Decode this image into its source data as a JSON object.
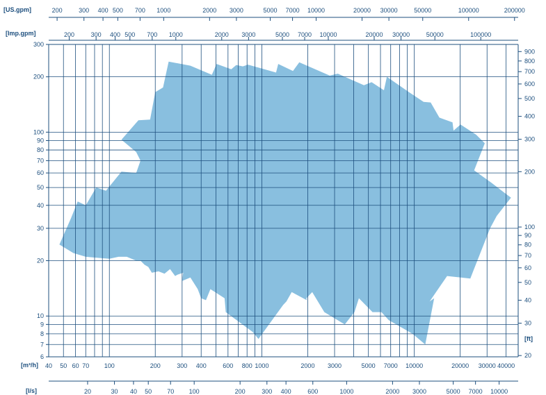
{
  "chart_data": {
    "type": "area",
    "title": "",
    "x_scale": "log",
    "y_scale": "log",
    "grid": true,
    "colors": {
      "area": "#89bfdf",
      "grid": "#1d4f7e",
      "axis": "#1d4f7e",
      "text": "#1d4f7e"
    },
    "axes": {
      "us_gpm": {
        "label": "[US.gpm]",
        "ticks": [
          {
            "v": 200,
            "t": "200"
          },
          {
            "v": 300,
            "t": "300"
          },
          {
            "v": 400,
            "t": "400"
          },
          {
            "v": 500,
            "t": "500"
          },
          {
            "v": 700,
            "t": "700"
          },
          {
            "v": 1000,
            "t": "1000"
          },
          {
            "v": 2000,
            "t": "2000"
          },
          {
            "v": 3000,
            "t": "3000"
          },
          {
            "v": 5000,
            "t": "5000"
          },
          {
            "v": 7000,
            "t": "7000"
          },
          {
            "v": 10000,
            "t": "10000"
          },
          {
            "v": 20000,
            "t": "20000"
          },
          {
            "v": 30000,
            "t": "30000"
          },
          {
            "v": 50000,
            "t": "50000"
          },
          {
            "v": 100000,
            "t": "100000"
          },
          {
            "v": 200000,
            "t": "200000"
          }
        ]
      },
      "imp_gpm": {
        "label": "[Imp.gpm]",
        "ticks": [
          {
            "v": 200,
            "t": "200"
          },
          {
            "v": 300,
            "t": "300"
          },
          {
            "v": 400,
            "t": "400"
          },
          {
            "v": 500,
            "t": "500"
          },
          {
            "v": 700,
            "t": "700"
          },
          {
            "v": 1000,
            "t": "1000"
          },
          {
            "v": 2000,
            "t": "2000"
          },
          {
            "v": 3000,
            "t": "3000"
          },
          {
            "v": 5000,
            "t": "5000"
          },
          {
            "v": 7000,
            "t": "7000"
          },
          {
            "v": 10000,
            "t": "10000"
          },
          {
            "v": 20000,
            "t": "20000"
          },
          {
            "v": 30000,
            "t": "30000"
          },
          {
            "v": 50000,
            "t": "50000"
          },
          {
            "v": 100000,
            "t": "100000"
          }
        ]
      },
      "m3h": {
        "label": "[m³/h]",
        "ticks": [
          {
            "v": 40,
            "t": "40"
          },
          {
            "v": 50,
            "t": "50"
          },
          {
            "v": 60,
            "t": "60"
          },
          {
            "v": 70,
            "t": "70"
          },
          {
            "v": 100,
            "t": "100"
          },
          {
            "v": 200,
            "t": "200"
          },
          {
            "v": 300,
            "t": "300"
          },
          {
            "v": 400,
            "t": "400"
          },
          {
            "v": 600,
            "t": "600"
          },
          {
            "v": 800,
            "t": "800"
          },
          {
            "v": 1000,
            "t": "1000"
          },
          {
            "v": 2000,
            "t": "2000"
          },
          {
            "v": 3000,
            "t": "3000"
          },
          {
            "v": 5000,
            "t": "5000"
          },
          {
            "v": 7000,
            "t": "7000"
          },
          {
            "v": 10000,
            "t": "10000"
          },
          {
            "v": 20000,
            "t": "20000"
          },
          {
            "v": 30000,
            "t": "30000"
          },
          {
            "v": 40000,
            "t": "40000"
          }
        ]
      },
      "ls": {
        "label": "[l/s]",
        "ticks": [
          {
            "v": 20,
            "t": "20"
          },
          {
            "v": 30,
            "t": "30"
          },
          {
            "v": 40,
            "t": "40"
          },
          {
            "v": 50,
            "t": "50"
          },
          {
            "v": 70,
            "t": "70"
          },
          {
            "v": 100,
            "t": "100"
          },
          {
            "v": 200,
            "t": "200"
          },
          {
            "v": 300,
            "t": "300"
          },
          {
            "v": 400,
            "t": "400"
          },
          {
            "v": 600,
            "t": "600"
          },
          {
            "v": 1000,
            "t": "1000"
          },
          {
            "v": 2000,
            "t": "2000"
          },
          {
            "v": 3000,
            "t": "3000"
          },
          {
            "v": 5000,
            "t": "5000"
          },
          {
            "v": 7000,
            "t": "7000"
          },
          {
            "v": 10000,
            "t": "10000"
          }
        ]
      },
      "head_m": {
        "label": "",
        "ticks": [
          {
            "v": 6,
            "t": "6"
          },
          {
            "v": 7,
            "t": "7"
          },
          {
            "v": 8,
            "t": "8"
          },
          {
            "v": 9,
            "t": "9"
          },
          {
            "v": 10,
            "t": "10"
          },
          {
            "v": 20,
            "t": "20"
          },
          {
            "v": 30,
            "t": "30"
          },
          {
            "v": 40,
            "t": "40"
          },
          {
            "v": 50,
            "t": "50"
          },
          {
            "v": 60,
            "t": "60"
          },
          {
            "v": 70,
            "t": "70"
          },
          {
            "v": 80,
            "t": "80"
          },
          {
            "v": 90,
            "t": "90"
          },
          {
            "v": 100,
            "t": "100"
          },
          {
            "v": 200,
            "t": "200"
          },
          {
            "v": 300,
            "t": "300"
          }
        ]
      },
      "head_ft": {
        "label": "[ft]",
        "ticks": [
          {
            "v": 20,
            "t": "20"
          },
          {
            "v": 30,
            "t": "30"
          },
          {
            "v": 40,
            "t": "40"
          },
          {
            "v": 50,
            "t": "50"
          },
          {
            "v": 60,
            "t": "60"
          },
          {
            "v": 70,
            "t": "70"
          },
          {
            "v": 80,
            "t": "80"
          },
          {
            "v": 90,
            "t": "90"
          },
          {
            "v": 100,
            "t": "100"
          },
          {
            "v": 200,
            "t": "200"
          },
          {
            "v": 300,
            "t": "300"
          },
          {
            "v": 400,
            "t": "400"
          },
          {
            "v": 500,
            "t": "500"
          },
          {
            "v": 600,
            "t": "600"
          },
          {
            "v": 700,
            "t": "700"
          },
          {
            "v": 800,
            "t": "800"
          },
          {
            "v": 900,
            "t": "900"
          }
        ]
      }
    },
    "xlim_m3h": [
      40,
      48000
    ],
    "ylim_m": [
      6,
      300
    ],
    "vertical_grid_m3h": [
      50,
      60,
      70,
      80,
      90,
      100,
      200,
      300,
      400,
      500,
      600,
      700,
      800,
      900,
      1000,
      2000,
      3000,
      4000,
      5000,
      6000,
      7000,
      8000,
      9000,
      10000,
      20000,
      30000,
      40000
    ],
    "horizontal_grid_m": [
      7,
      8,
      9,
      10,
      20,
      30,
      40,
      50,
      60,
      70,
      80,
      90,
      100,
      200
    ],
    "coverage_area": {
      "x_unit": "m3/h",
      "y_unit": "m",
      "points": [
        [
          47,
          24.5
        ],
        [
          56,
          34
        ],
        [
          62,
          42
        ],
        [
          70,
          40
        ],
        [
          82,
          50
        ],
        [
          95,
          48
        ],
        [
          120,
          61
        ],
        [
          150,
          60
        ],
        [
          160,
          70
        ],
        [
          150,
          78
        ],
        [
          120,
          91
        ],
        [
          155,
          116
        ],
        [
          185,
          117
        ],
        [
          200,
          165
        ],
        [
          225,
          175
        ],
        [
          245,
          242
        ],
        [
          340,
          230
        ],
        [
          470,
          205
        ],
        [
          505,
          235
        ],
        [
          630,
          220
        ],
        [
          680,
          232
        ],
        [
          750,
          228
        ],
        [
          810,
          233
        ],
        [
          1240,
          211
        ],
        [
          1280,
          235
        ],
        [
          1600,
          215
        ],
        [
          1760,
          240
        ],
        [
          2790,
          203
        ],
        [
          3150,
          208
        ],
        [
          4670,
          180
        ],
        [
          5250,
          187
        ],
        [
          6320,
          169
        ],
        [
          6610,
          200
        ],
        [
          9330,
          164
        ],
        [
          11500,
          146
        ],
        [
          12800,
          145
        ],
        [
          14600,
          120
        ],
        [
          17800,
          113
        ],
        [
          18100,
          102
        ],
        [
          20100,
          110
        ],
        [
          25400,
          97
        ],
        [
          29000,
          87
        ],
        [
          24700,
          62
        ],
        [
          32100,
          53
        ],
        [
          38800,
          47
        ],
        [
          43100,
          44
        ],
        [
          34700,
          35
        ],
        [
          31400,
          30
        ],
        [
          24300,
          17.5
        ],
        [
          23300,
          16
        ],
        [
          16400,
          16.5
        ],
        [
          12600,
          12
        ],
        [
          13500,
          12.5
        ],
        [
          11800,
          7
        ],
        [
          9740,
          8
        ],
        [
          6800,
          9.5
        ],
        [
          6090,
          10.5
        ],
        [
          5320,
          10.5
        ],
        [
          4330,
          12.5
        ],
        [
          4050,
          10.5
        ],
        [
          3500,
          9
        ],
        [
          2570,
          10.5
        ],
        [
          2140,
          13.5
        ],
        [
          1960,
          12.5
        ],
        [
          1970,
          12.2
        ],
        [
          1570,
          13.5
        ],
        [
          1450,
          12
        ],
        [
          1380,
          11.5
        ],
        [
          950,
          7.5
        ],
        [
          870,
          8.2
        ],
        [
          580,
          10.5
        ],
        [
          570,
          12.5
        ],
        [
          460,
          14
        ],
        [
          430,
          12.2
        ],
        [
          400,
          12.5
        ],
        [
          380,
          14
        ],
        [
          340,
          16.2
        ],
        [
          300,
          15.5
        ],
        [
          305,
          17.2
        ],
        [
          280,
          16.8
        ],
        [
          270,
          16.5
        ],
        [
          250,
          18
        ],
        [
          230,
          17
        ],
        [
          210,
          17.5
        ],
        [
          190,
          17.2
        ],
        [
          180,
          18.5
        ],
        [
          170,
          19
        ],
        [
          160,
          20
        ],
        [
          150,
          20
        ],
        [
          130,
          21
        ],
        [
          115,
          21
        ],
        [
          100,
          20.5
        ],
        [
          70,
          21
        ],
        [
          58,
          22
        ],
        [
          47,
          24.5
        ]
      ]
    }
  }
}
